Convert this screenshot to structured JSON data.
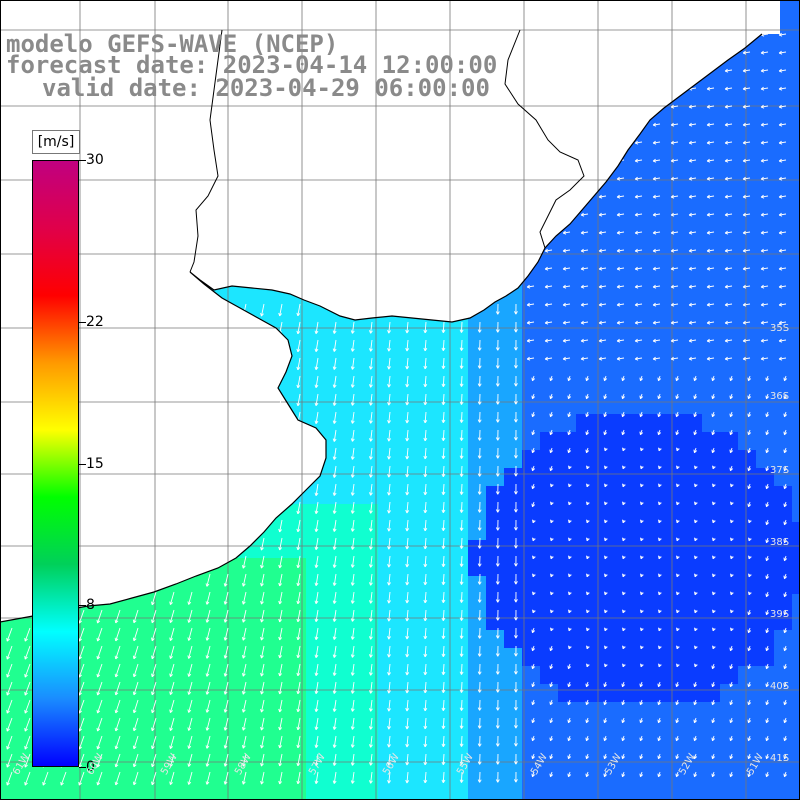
{
  "title": {
    "line1": "modelo GEFS-WAVE (NCEP)",
    "line2": "forecast date: 2023-04-14 12:00:00",
    "line3": "valid date: 2023-04-29 06:00:00"
  },
  "colorbar": {
    "unit": "[m/s]",
    "ticks": [
      "30",
      "22",
      "15",
      "8",
      "0"
    ],
    "tick_values": [
      30,
      22,
      15,
      8,
      0
    ],
    "range": [
      0,
      30
    ],
    "colors": [
      "#0000ff",
      "#1a8cff",
      "#00ffff",
      "#00d05a",
      "#00ff00",
      "#ffff00",
      "#ff9900",
      "#ff0000",
      "#e0004a",
      "#c00080"
    ]
  },
  "map": {
    "lat_labels": [
      "35S",
      "36S",
      "37S",
      "38S",
      "39S",
      "40S",
      "41S"
    ],
    "lon_labels": [
      "61W",
      "60W",
      "59W",
      "58W",
      "57W",
      "56W",
      "55W",
      "54W",
      "53W",
      "52W",
      "51W"
    ],
    "grid_lines": "on",
    "ocean_colors": {
      "deep_blue": "#0a3cff",
      "blue": "#1a6cff",
      "light_blue": "#19a6ff",
      "cyan": "#1ce6ff",
      "aqua_green": "#10ffd0",
      "green": "#20ff90"
    },
    "land_color": "#ffffff",
    "coast_color": "#000000",
    "arrow_color": "#ffffff"
  }
}
